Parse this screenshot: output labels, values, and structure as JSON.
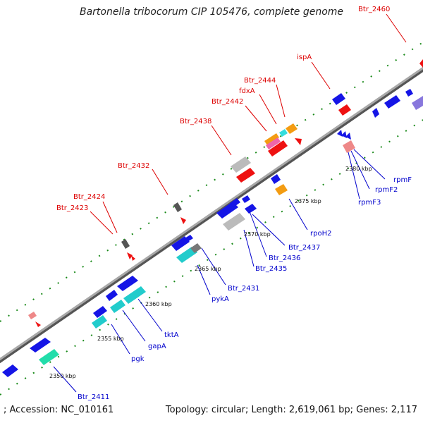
{
  "title": "Bartonella tribocorum CIP 105476, complete genome",
  "footer": {
    "accession": "; Accession: NC_010161",
    "summary": "Topology: circular; Length: 2,619,061 bp; Genes: 2,117"
  },
  "ticks": [
    "2350 kbp",
    "2355 kbp",
    "2360 kbp",
    "2365 kbp",
    "2370 kbp",
    "2375 kbp",
    "2380 kbp"
  ],
  "labels_top": [
    "Btr_2460",
    "ispA",
    "Btr_2444",
    "fdxA",
    "Btr_2442",
    "Btr_2438",
    "Btr_2432",
    "Btr_2424",
    "Btr_2423"
  ],
  "labels_bottom": [
    "rpmF",
    "rpmF2",
    "rpmF3",
    "rpoH2",
    "Btr_2437",
    "Btr_2436",
    "Btr_2435",
    "Btr_2431",
    "pykA",
    "tktA",
    "gapA",
    "pgk",
    "Btr_2411"
  ],
  "colors": {
    "forward_gene": "#1515e6",
    "reverse_gene": "#1515e6",
    "rna": "#ee1111",
    "teal": "#22cccc",
    "grey": "#bbbbbb",
    "orange": "#f39c12",
    "backbone": "#8c8c8c",
    "label_top": "#dd0000",
    "label_bottom": "#0000cc"
  }
}
